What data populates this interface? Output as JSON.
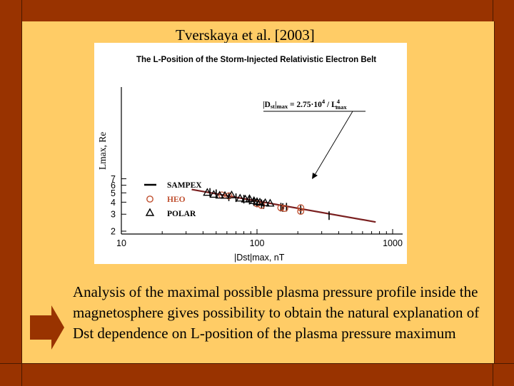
{
  "slide": {
    "citation": "Tverskaya et al. [2003]",
    "body": "Analysis of the maximal possible plasma pressure profile inside the magnetosphere gives possibility to obtain the natural explanation of Dst dependence on L-position of the plasma pressure maximum",
    "colors": {
      "background": "#ffcc66",
      "frame": "#993300",
      "arrow": "#993300"
    },
    "arrow_icon": "right-arrow-icon"
  },
  "chart_data": {
    "type": "scatter",
    "title": "The L-Position of the Storm-Injected Relativistic Electron Belt",
    "xlabel": "|Dst|max, nT",
    "ylabel": "Lmax, Re",
    "xscale": "log",
    "yscale": "log",
    "xlim": [
      10,
      1000
    ],
    "ylim": [
      2,
      7.5
    ],
    "xticks": [
      "10",
      "100",
      "1000"
    ],
    "yticks": [
      "2",
      "3",
      "4",
      "5",
      "6",
      "7"
    ],
    "grid": false,
    "legend_position": "lower-left",
    "equation": {
      "prefix": "|D",
      "sub1": "st",
      "mid": "|",
      "sub2": "max",
      "formula": " = 2.75·10",
      "exp1": "4",
      "slash": " / L",
      "exp2": "4",
      "sub3": "max"
    },
    "fit_line": {
      "name": "SAMPEX",
      "x": [
        33,
        750
      ],
      "y": [
        5.42,
        2.49
      ]
    },
    "series": [
      {
        "name": "SAMPEX",
        "marker": "line",
        "values": [
          [
            45,
            5.05
          ],
          [
            50,
            4.9
          ],
          [
            62,
            4.55
          ],
          [
            70,
            4.45
          ],
          [
            80,
            4.3
          ],
          [
            88,
            4.2
          ],
          [
            95,
            4.05
          ],
          [
            100,
            3.92
          ],
          [
            108,
            3.85
          ],
          [
            112,
            3.78
          ],
          [
            150,
            3.55
          ],
          [
            155,
            3.52
          ],
          [
            165,
            3.55
          ],
          [
            210,
            3.35
          ],
          [
            340,
            2.9
          ]
        ]
      },
      {
        "name": "HEO",
        "marker": "circle",
        "values": [
          [
            55,
            4.75
          ],
          [
            62,
            4.65
          ],
          [
            100,
            3.85
          ],
          [
            108,
            3.7
          ],
          [
            150,
            3.5
          ],
          [
            160,
            3.45
          ],
          [
            210,
            3.5
          ],
          [
            210,
            3.22
          ]
        ]
      },
      {
        "name": "POLAR",
        "marker": "triangle",
        "values": [
          [
            43,
            5.05
          ],
          [
            48,
            4.82
          ],
          [
            53,
            4.72
          ],
          [
            58,
            4.7
          ],
          [
            65,
            4.75
          ],
          [
            75,
            4.4
          ],
          [
            82,
            4.3
          ],
          [
            88,
            4.35
          ],
          [
            95,
            4.15
          ],
          [
            100,
            4.05
          ],
          [
            105,
            4.0
          ],
          [
            115,
            3.95
          ],
          [
            125,
            3.9
          ]
        ]
      }
    ]
  }
}
